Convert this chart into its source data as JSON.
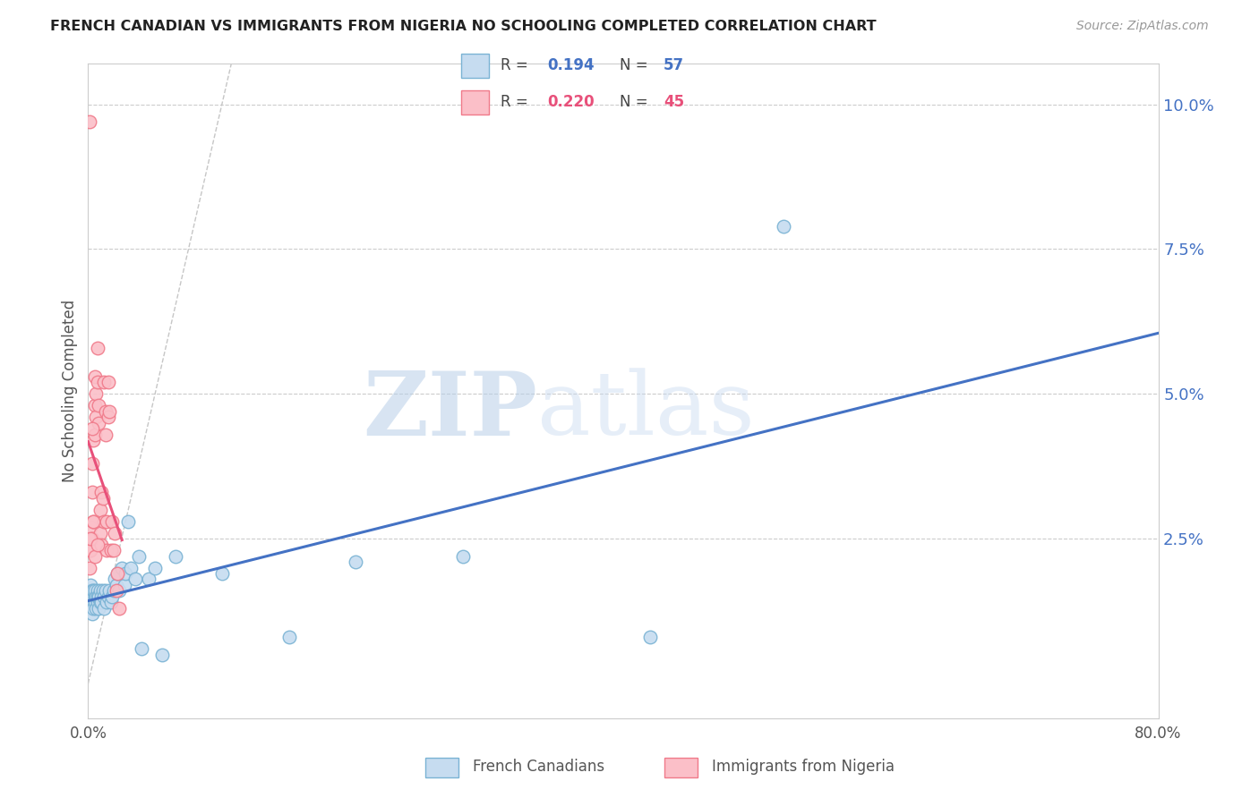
{
  "title": "FRENCH CANADIAN VS IMMIGRANTS FROM NIGERIA NO SCHOOLING COMPLETED CORRELATION CHART",
  "source": "Source: ZipAtlas.com",
  "ylabel": "No Schooling Completed",
  "y_tick_labels_right": [
    "2.5%",
    "5.0%",
    "7.5%",
    "10.0%"
  ],
  "y_tick_values_right": [
    0.025,
    0.05,
    0.075,
    0.1
  ],
  "xlim": [
    0.0,
    0.8
  ],
  "ylim": [
    -0.006,
    0.107
  ],
  "blue_r": "0.194",
  "blue_n": "57",
  "pink_r": "0.220",
  "pink_n": "45",
  "blue_fill_color": "#c6dcf0",
  "blue_edge_color": "#7ab3d4",
  "blue_line_color": "#4472c4",
  "pink_fill_color": "#fbbfc8",
  "pink_edge_color": "#f07a8a",
  "pink_line_color": "#e8507a",
  "legend_label_blue": "French Canadians",
  "legend_label_pink": "Immigrants from Nigeria",
  "watermark_zip": "ZIP",
  "watermark_atlas": "atlas",
  "grid_color": "#cccccc",
  "bg_color": "#ffffff",
  "blue_scatter_x": [
    0.001,
    0.001,
    0.002,
    0.002,
    0.002,
    0.003,
    0.003,
    0.003,
    0.004,
    0.004,
    0.004,
    0.005,
    0.005,
    0.005,
    0.006,
    0.006,
    0.007,
    0.007,
    0.007,
    0.008,
    0.008,
    0.009,
    0.009,
    0.01,
    0.01,
    0.011,
    0.012,
    0.012,
    0.013,
    0.014,
    0.015,
    0.016,
    0.017,
    0.018,
    0.019,
    0.02,
    0.021,
    0.022,
    0.023,
    0.025,
    0.027,
    0.028,
    0.03,
    0.032,
    0.035,
    0.038,
    0.04,
    0.045,
    0.05,
    0.055,
    0.065,
    0.1,
    0.15,
    0.2,
    0.28,
    0.42,
    0.52
  ],
  "blue_scatter_y": [
    0.016,
    0.014,
    0.015,
    0.017,
    0.013,
    0.016,
    0.014,
    0.012,
    0.015,
    0.016,
    0.013,
    0.015,
    0.014,
    0.016,
    0.015,
    0.013,
    0.014,
    0.016,
    0.015,
    0.015,
    0.013,
    0.014,
    0.016,
    0.015,
    0.014,
    0.016,
    0.015,
    0.013,
    0.016,
    0.014,
    0.015,
    0.016,
    0.014,
    0.015,
    0.016,
    0.018,
    0.017,
    0.019,
    0.016,
    0.02,
    0.017,
    0.019,
    0.028,
    0.02,
    0.018,
    0.022,
    0.006,
    0.018,
    0.02,
    0.005,
    0.022,
    0.019,
    0.008,
    0.021,
    0.022,
    0.008,
    0.079
  ],
  "pink_scatter_x": [
    0.001,
    0.001,
    0.002,
    0.002,
    0.003,
    0.003,
    0.003,
    0.004,
    0.004,
    0.005,
    0.005,
    0.005,
    0.006,
    0.006,
    0.007,
    0.007,
    0.008,
    0.008,
    0.009,
    0.009,
    0.01,
    0.01,
    0.011,
    0.012,
    0.012,
    0.013,
    0.013,
    0.014,
    0.014,
    0.015,
    0.015,
    0.016,
    0.017,
    0.018,
    0.019,
    0.02,
    0.021,
    0.022,
    0.023,
    0.001,
    0.002,
    0.003,
    0.004,
    0.005,
    0.007
  ],
  "pink_scatter_y": [
    0.023,
    0.02,
    0.023,
    0.027,
    0.038,
    0.033,
    0.025,
    0.028,
    0.042,
    0.048,
    0.053,
    0.043,
    0.05,
    0.046,
    0.058,
    0.052,
    0.048,
    0.045,
    0.03,
    0.026,
    0.024,
    0.033,
    0.032,
    0.052,
    0.028,
    0.047,
    0.043,
    0.028,
    0.023,
    0.046,
    0.052,
    0.047,
    0.023,
    0.028,
    0.023,
    0.026,
    0.016,
    0.019,
    0.013,
    0.097,
    0.025,
    0.044,
    0.028,
    0.022,
    0.024
  ]
}
